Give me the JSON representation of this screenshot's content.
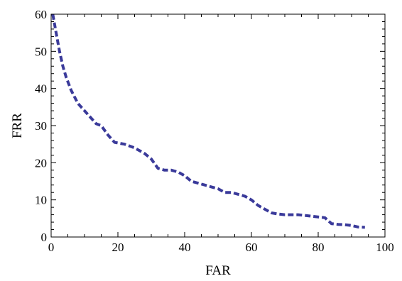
{
  "chart_data": {
    "type": "line",
    "xlabel": "FAR",
    "ylabel": "FRR",
    "xlim": [
      0,
      100
    ],
    "ylim": [
      0,
      60
    ],
    "x_ticks": [
      0,
      20,
      40,
      60,
      80,
      100
    ],
    "y_ticks": [
      0,
      10,
      20,
      30,
      40,
      50,
      60
    ],
    "x_minor_step": 5,
    "y_minor_step": 2,
    "grid": false,
    "line_style": "dashed",
    "series_color": "#3a3a9a",
    "series": [
      {
        "x": [
          0.5,
          1.5,
          2.5,
          3.5,
          4.5,
          6,
          8,
          10,
          12,
          13.5,
          15,
          17,
          19,
          22,
          25,
          28,
          30,
          32,
          34,
          36,
          38,
          40,
          42,
          44,
          46,
          48,
          50,
          52,
          54,
          56,
          58,
          60,
          62,
          64,
          66,
          68,
          70,
          72,
          74,
          76,
          78,
          80,
          82,
          84,
          86,
          88,
          90,
          92,
          94
        ],
        "y": [
          60,
          55,
          50,
          46,
          43,
          39.5,
          36,
          34,
          32,
          30.5,
          30,
          27.5,
          25.5,
          25,
          24,
          22.5,
          21,
          18.5,
          18,
          18,
          17.5,
          16.5,
          15,
          14.5,
          14,
          13.5,
          13,
          12,
          12,
          11.5,
          11,
          10,
          8.5,
          7.5,
          6.5,
          6.2,
          6,
          6,
          6,
          5.8,
          5.6,
          5.4,
          5.2,
          3.6,
          3.4,
          3.3,
          3.1,
          2.7,
          2.6
        ]
      }
    ]
  }
}
